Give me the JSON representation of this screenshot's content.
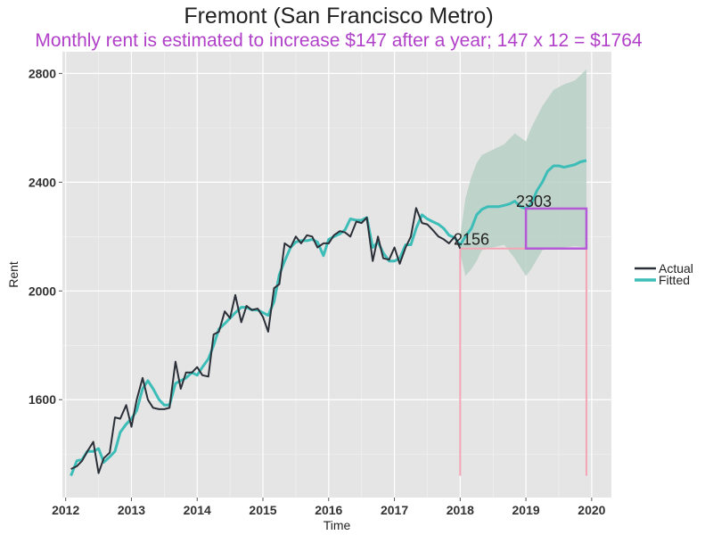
{
  "chart_data": {
    "type": "line",
    "title": "Fremont (San Francisco Metro)",
    "subtitle": "Monthly rent is estimated to increase $147 after a year; 147 x 12 = $1764",
    "xlabel": "Time",
    "ylabel": "Rent",
    "xlim": [
      2011.95,
      2020.3
    ],
    "ylim": [
      1240,
      2880
    ],
    "x_ticks": [
      2012,
      2013,
      2014,
      2015,
      2016,
      2017,
      2018,
      2019,
      2020
    ],
    "y_ticks": [
      1600,
      2000,
      2400,
      2800
    ],
    "grid": true,
    "legend_position": "right",
    "colors": {
      "panel": "#e5e5e5",
      "grid": "#ffffff",
      "actual": "#2b2f38",
      "fitted": "#3dbdb8",
      "band": "#b7d0c6",
      "annotation_box": "#b45ad6",
      "guide_lines": "#f4a6b6",
      "title": "#222222",
      "subtitle": "#b040c8"
    },
    "series": [
      {
        "name": "Actual",
        "points": [
          [
            2012.08,
            1345
          ],
          [
            2012.17,
            1355
          ],
          [
            2012.25,
            1375
          ],
          [
            2012.33,
            1410
          ],
          [
            2012.42,
            1445
          ],
          [
            2012.5,
            1330
          ],
          [
            2012.58,
            1385
          ],
          [
            2012.67,
            1405
          ],
          [
            2012.75,
            1535
          ],
          [
            2012.83,
            1530
          ],
          [
            2012.92,
            1580
          ],
          [
            2013.0,
            1500
          ],
          [
            2013.08,
            1600
          ],
          [
            2013.17,
            1680
          ],
          [
            2013.25,
            1600
          ],
          [
            2013.33,
            1570
          ],
          [
            2013.42,
            1565
          ],
          [
            2013.5,
            1565
          ],
          [
            2013.58,
            1570
          ],
          [
            2013.67,
            1740
          ],
          [
            2013.75,
            1640
          ],
          [
            2013.83,
            1700
          ],
          [
            2013.92,
            1700
          ],
          [
            2014.0,
            1720
          ],
          [
            2014.08,
            1690
          ],
          [
            2014.17,
            1685
          ],
          [
            2014.25,
            1840
          ],
          [
            2014.33,
            1850
          ],
          [
            2014.42,
            1925
          ],
          [
            2014.5,
            1900
          ],
          [
            2014.58,
            1985
          ],
          [
            2014.67,
            1885
          ],
          [
            2014.75,
            1945
          ],
          [
            2014.83,
            1930
          ],
          [
            2014.92,
            1935
          ],
          [
            2015.0,
            1905
          ],
          [
            2015.08,
            1850
          ],
          [
            2015.17,
            2010
          ],
          [
            2015.25,
            2025
          ],
          [
            2015.33,
            2175
          ],
          [
            2015.42,
            2160
          ],
          [
            2015.5,
            2200
          ],
          [
            2015.58,
            2175
          ],
          [
            2015.67,
            2205
          ],
          [
            2015.75,
            2200
          ],
          [
            2015.83,
            2160
          ],
          [
            2015.92,
            2175
          ],
          [
            2016.0,
            2175
          ],
          [
            2016.08,
            2205
          ],
          [
            2016.17,
            2220
          ],
          [
            2016.25,
            2215
          ],
          [
            2016.33,
            2200
          ],
          [
            2016.42,
            2255
          ],
          [
            2016.5,
            2250
          ],
          [
            2016.58,
            2270
          ],
          [
            2016.67,
            2110
          ],
          [
            2016.75,
            2200
          ],
          [
            2016.83,
            2120
          ],
          [
            2016.92,
            2115
          ],
          [
            2017.0,
            2160
          ],
          [
            2017.08,
            2100
          ],
          [
            2017.17,
            2160
          ],
          [
            2017.25,
            2200
          ],
          [
            2017.33,
            2305
          ],
          [
            2017.42,
            2250
          ],
          [
            2017.5,
            2245
          ],
          [
            2017.58,
            2225
          ],
          [
            2017.67,
            2200
          ],
          [
            2017.75,
            2190
          ],
          [
            2017.83,
            2175
          ],
          [
            2017.92,
            2200
          ],
          [
            2018.0,
            2156
          ]
        ]
      },
      {
        "name": "Fitted",
        "points": [
          [
            2012.08,
            1320
          ],
          [
            2012.17,
            1375
          ],
          [
            2012.25,
            1380
          ],
          [
            2012.33,
            1410
          ],
          [
            2012.42,
            1410
          ],
          [
            2012.5,
            1420
          ],
          [
            2012.58,
            1370
          ],
          [
            2012.67,
            1390
          ],
          [
            2012.75,
            1410
          ],
          [
            2012.83,
            1480
          ],
          [
            2012.92,
            1510
          ],
          [
            2013.0,
            1530
          ],
          [
            2013.08,
            1560
          ],
          [
            2013.17,
            1640
          ],
          [
            2013.25,
            1670
          ],
          [
            2013.33,
            1640
          ],
          [
            2013.42,
            1600
          ],
          [
            2013.5,
            1580
          ],
          [
            2013.58,
            1580
          ],
          [
            2013.67,
            1660
          ],
          [
            2013.75,
            1670
          ],
          [
            2013.83,
            1680
          ],
          [
            2013.92,
            1700
          ],
          [
            2014.0,
            1690
          ],
          [
            2014.08,
            1720
          ],
          [
            2014.17,
            1750
          ],
          [
            2014.25,
            1800
          ],
          [
            2014.33,
            1860
          ],
          [
            2014.42,
            1880
          ],
          [
            2014.5,
            1900
          ],
          [
            2014.58,
            1920
          ],
          [
            2014.67,
            1940
          ],
          [
            2014.75,
            1940
          ],
          [
            2014.83,
            1930
          ],
          [
            2014.92,
            1930
          ],
          [
            2015.0,
            1920
          ],
          [
            2015.08,
            1910
          ],
          [
            2015.17,
            1960
          ],
          [
            2015.25,
            2060
          ],
          [
            2015.33,
            2110
          ],
          [
            2015.42,
            2160
          ],
          [
            2015.5,
            2180
          ],
          [
            2015.58,
            2185
          ],
          [
            2015.67,
            2185
          ],
          [
            2015.75,
            2190
          ],
          [
            2015.83,
            2180
          ],
          [
            2015.92,
            2130
          ],
          [
            2016.0,
            2190
          ],
          [
            2016.08,
            2200
          ],
          [
            2016.17,
            2210
          ],
          [
            2016.25,
            2225
          ],
          [
            2016.33,
            2265
          ],
          [
            2016.42,
            2260
          ],
          [
            2016.5,
            2260
          ],
          [
            2016.58,
            2270
          ],
          [
            2016.67,
            2160
          ],
          [
            2016.75,
            2180
          ],
          [
            2016.83,
            2140
          ],
          [
            2016.92,
            2110
          ],
          [
            2017.0,
            2110
          ],
          [
            2017.08,
            2120
          ],
          [
            2017.17,
            2170
          ],
          [
            2017.25,
            2170
          ],
          [
            2017.33,
            2230
          ],
          [
            2017.42,
            2280
          ],
          [
            2017.5,
            2265
          ],
          [
            2017.58,
            2255
          ],
          [
            2017.67,
            2245
          ],
          [
            2017.75,
            2230
          ],
          [
            2017.83,
            2205
          ],
          [
            2017.92,
            2195
          ],
          [
            2018.0,
            2170
          ],
          [
            2018.08,
            2200
          ],
          [
            2018.17,
            2230
          ],
          [
            2018.25,
            2280
          ],
          [
            2018.33,
            2300
          ],
          [
            2018.42,
            2310
          ],
          [
            2018.5,
            2310
          ],
          [
            2018.58,
            2310
          ],
          [
            2018.67,
            2315
          ],
          [
            2018.75,
            2320
          ],
          [
            2018.83,
            2330
          ],
          [
            2018.92,
            2310
          ],
          [
            2019.0,
            2303
          ],
          [
            2019.08,
            2320
          ],
          [
            2019.17,
            2370
          ],
          [
            2019.25,
            2400
          ],
          [
            2019.33,
            2440
          ],
          [
            2019.42,
            2460
          ],
          [
            2019.5,
            2460
          ],
          [
            2019.58,
            2455
          ],
          [
            2019.67,
            2460
          ],
          [
            2019.75,
            2465
          ],
          [
            2019.83,
            2475
          ],
          [
            2019.92,
            2480
          ]
        ]
      }
    ],
    "confidence_band": [
      [
        2018.0,
        2140,
        2200
      ],
      [
        2018.08,
        2055,
        2340
      ],
      [
        2018.17,
        2080,
        2420
      ],
      [
        2018.25,
        2110,
        2470
      ],
      [
        2018.33,
        2150,
        2500
      ],
      [
        2018.5,
        2160,
        2520
      ],
      [
        2018.67,
        2170,
        2540
      ],
      [
        2018.83,
        2120,
        2580
      ],
      [
        2019.0,
        2055,
        2550
      ],
      [
        2019.08,
        2080,
        2600
      ],
      [
        2019.25,
        2150,
        2680
      ],
      [
        2019.42,
        2160,
        2740
      ],
      [
        2019.58,
        2160,
        2760
      ],
      [
        2019.75,
        2165,
        2775
      ],
      [
        2019.92,
        2160,
        2815
      ]
    ],
    "annotations": [
      {
        "text": "2156",
        "x": 2017.9,
        "y": 2170
      },
      {
        "text": "2303",
        "x": 2018.85,
        "y": 2310
      }
    ],
    "highlight_box": {
      "x0": 2019.0,
      "x1": 2019.92,
      "y0": 2156,
      "y1": 2303
    },
    "guide_lines": [
      {
        "x": 2018.0,
        "y_from": 1320,
        "y_to": 2156
      },
      {
        "x": 2019.92,
        "y_from": 1320,
        "y_to": 2156
      },
      {
        "y": 2156,
        "x_from": 2018.0,
        "x_to": 2019.92
      }
    ],
    "legend": [
      {
        "name": "Actual",
        "color": "#2b2f38"
      },
      {
        "name": "Fitted",
        "color": "#3dbdb8"
      }
    ]
  }
}
